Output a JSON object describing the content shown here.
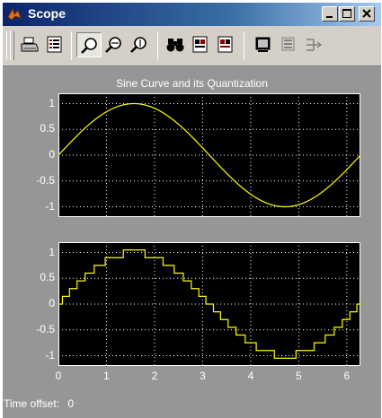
{
  "window": {
    "title": "Scope",
    "minimize_label": "_",
    "maximize_label": "□",
    "close_label": "×"
  },
  "toolbar": {
    "items": [
      {
        "icon": "printer-icon",
        "label": "Print"
      },
      {
        "icon": "parameters-icon",
        "label": "Parameters"
      },
      {
        "icon": "zoom-icon",
        "label": "Zoom",
        "pressed": true
      },
      {
        "icon": "zoom-x-icon",
        "label": "Zoom X-axis"
      },
      {
        "icon": "zoom-y-icon",
        "label": "Zoom Y-axis"
      },
      {
        "icon": "binoculars-icon",
        "label": "Autoscale"
      },
      {
        "icon": "save-axes-icon",
        "label": "Save axes settings"
      },
      {
        "icon": "restore-axes-icon",
        "label": "Restore axes settings"
      },
      {
        "icon": "floating-scope-icon",
        "label": "Floating scope"
      },
      {
        "icon": "lock-axes-icon",
        "label": "Lock axes selection"
      },
      {
        "icon": "signal-selection-icon",
        "label": "Signal selection"
      }
    ]
  },
  "figure": {
    "title": "Sine Curve and its Quantization"
  },
  "status": {
    "label": "Time offset:",
    "value": "0"
  },
  "colors": {
    "trace": "#ffff00",
    "axes_bg": "#000000",
    "figure_bg": "#969696",
    "grid": "#ffffff"
  },
  "chart_data": [
    {
      "type": "line",
      "title": "Sine Curve and its Quantization",
      "xlim": [
        0,
        6.283
      ],
      "ylim": [
        -1.2,
        1.2
      ],
      "yticks": [
        1,
        0.5,
        0,
        -0.5,
        -1
      ],
      "ytick_labels": [
        "1",
        "0.5",
        "0",
        "-0.5",
        "-1"
      ],
      "grid": true,
      "series": [
        {
          "function": "sin(t)",
          "step": 0
        }
      ]
    },
    {
      "type": "line",
      "xlim": [
        0,
        6.283
      ],
      "ylim": [
        -1.2,
        1.2
      ],
      "yticks": [
        1,
        0.5,
        0,
        -0.5,
        -1
      ],
      "ytick_labels": [
        "1",
        "0.5",
        "0",
        "-0.5",
        "-1"
      ],
      "xticks": [
        0,
        1,
        2,
        3,
        4,
        5,
        6
      ],
      "xtick_labels": [
        "0",
        "1",
        "2",
        "3",
        "4",
        "5",
        "6"
      ],
      "grid": true,
      "series": [
        {
          "function": "round(sin(t)/0.15)*0.15",
          "step": 0.15
        }
      ]
    }
  ]
}
